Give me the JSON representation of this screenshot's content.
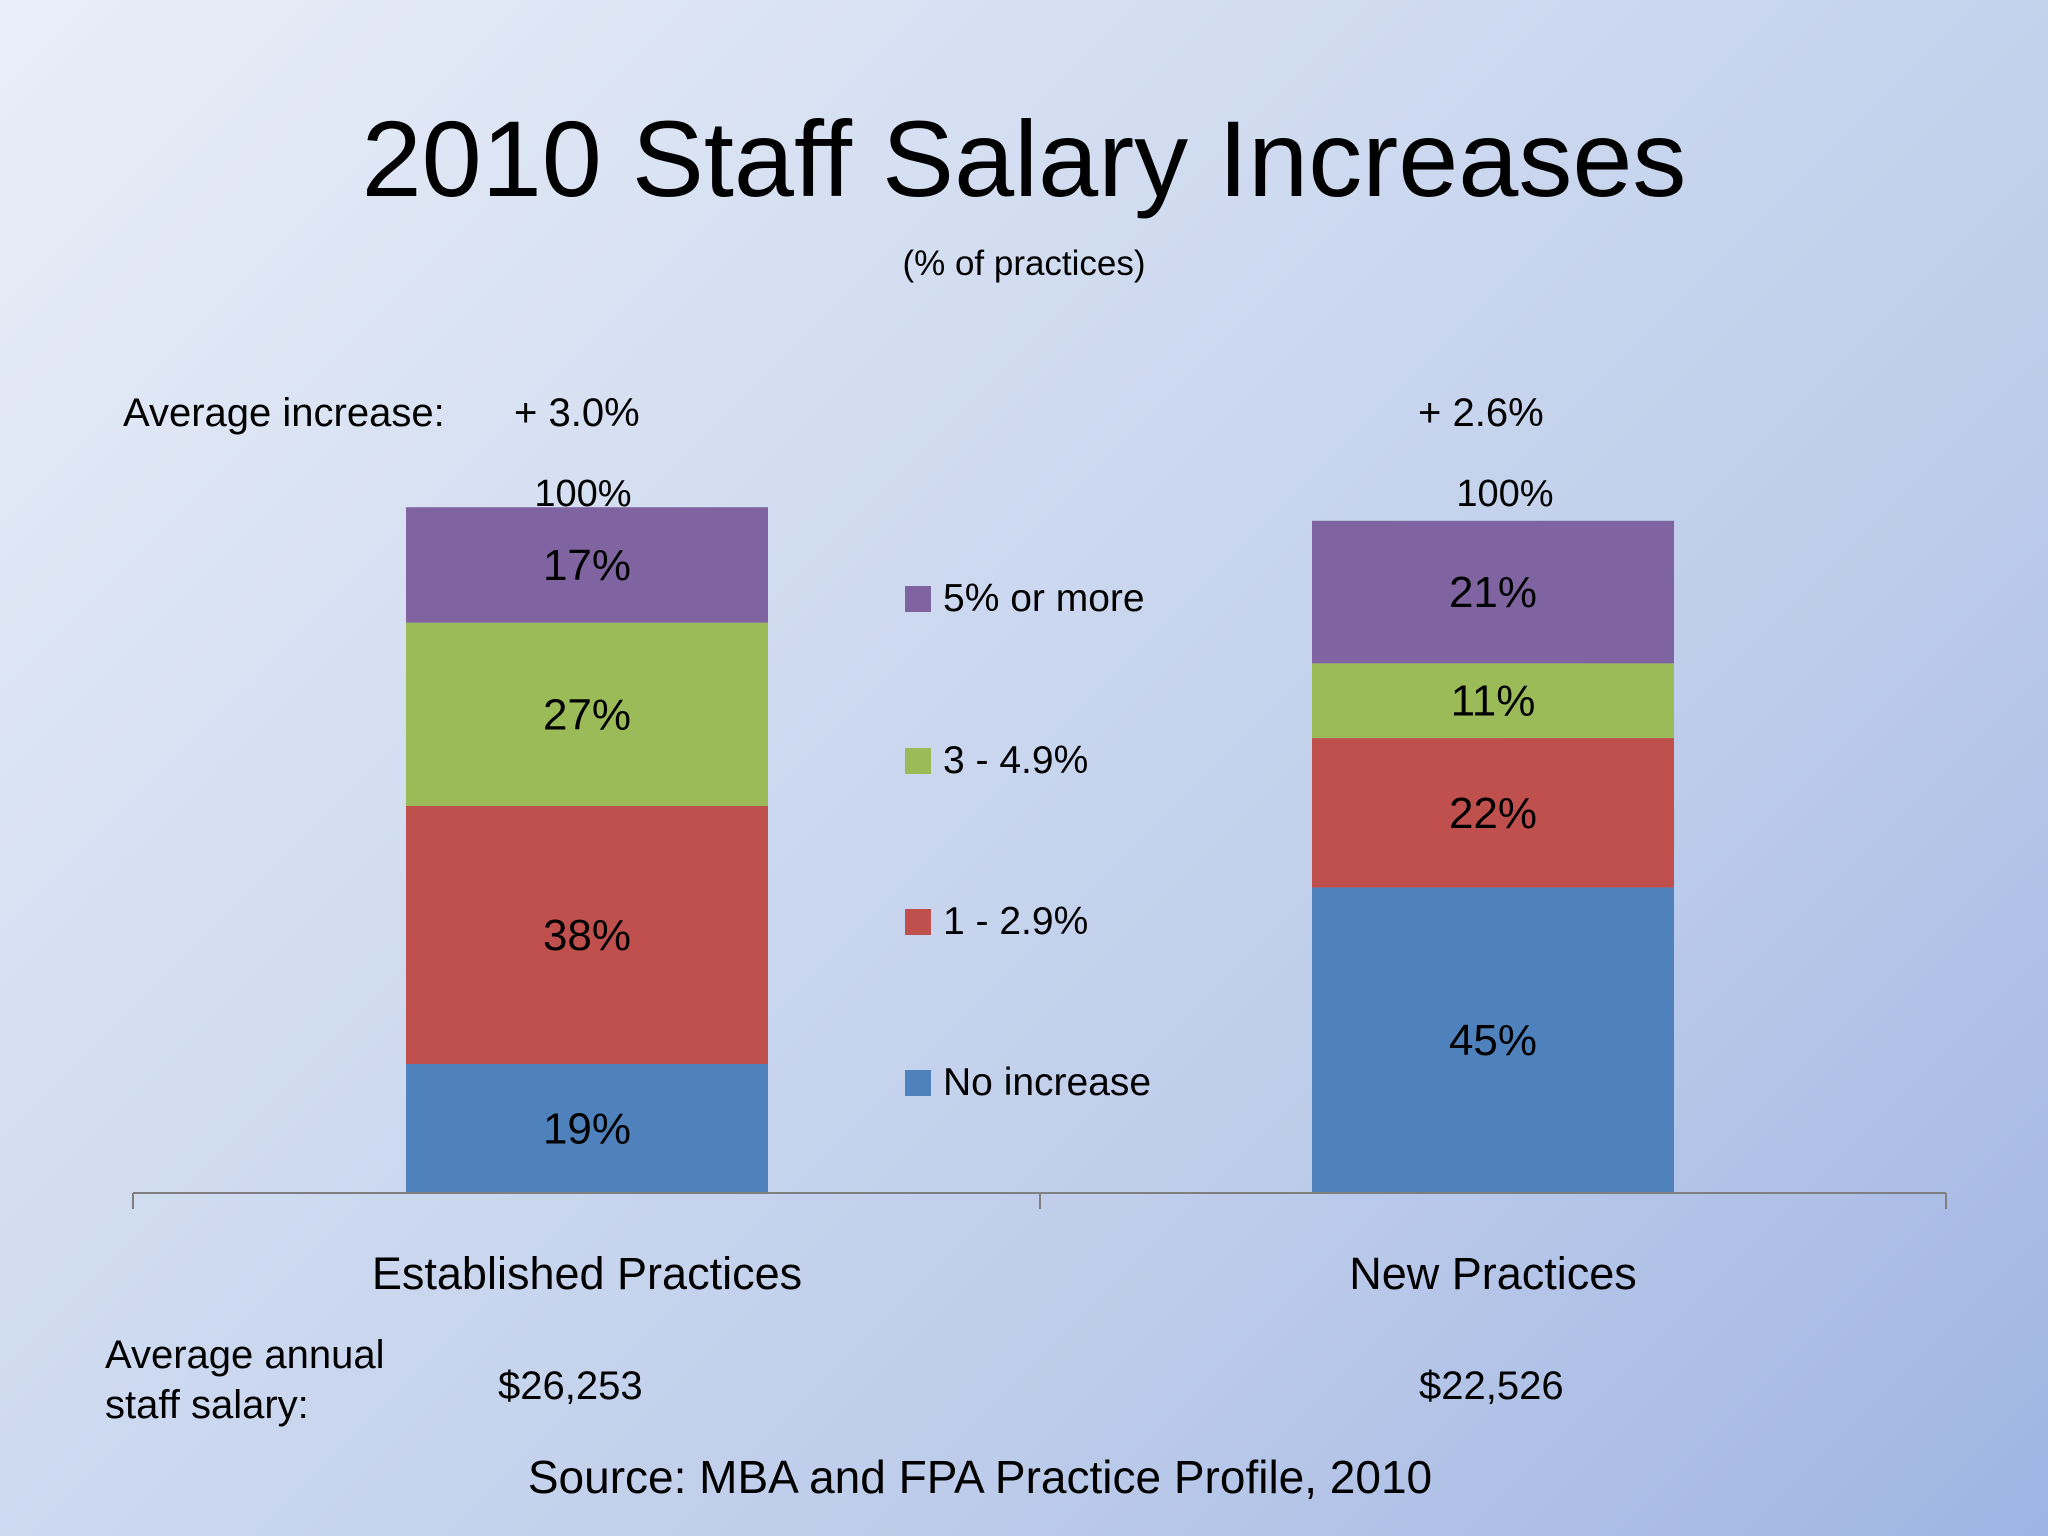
{
  "header": {
    "title": "2010 Staff Salary Increases",
    "subtitle": "(% of practices)"
  },
  "average_increase": {
    "label": "Average increase:",
    "established": "+ 3.0%",
    "new": "+ 2.6%"
  },
  "totals": {
    "established": "100%",
    "new": "100%"
  },
  "salary": {
    "label": "Average annual staff salary:",
    "established": "$26,253",
    "new": "$22,526"
  },
  "source": "Source: MBA and FPA Practice Profile, 2010",
  "chart_data": {
    "type": "bar",
    "stacked": true,
    "categories": [
      "Established Practices",
      "New Practices"
    ],
    "series": [
      {
        "name": "No increase",
        "values": [
          19,
          45
        ],
        "labels": [
          "19%",
          "45%"
        ],
        "color": "#4f81bd"
      },
      {
        "name": "1 - 2.9%",
        "values": [
          38,
          22
        ],
        "labels": [
          "38%",
          "22%"
        ],
        "color": "#c0504d"
      },
      {
        "name": "3 - 4.9%",
        "values": [
          27,
          11
        ],
        "labels": [
          "27%",
          "11%"
        ],
        "color": "#9bbb59"
      },
      {
        "name": "5% or more",
        "values": [
          17,
          21
        ],
        "labels": [
          "17%",
          "21%"
        ],
        "color": "#8064a2"
      }
    ],
    "legend_order": [
      "5% or more",
      "3 - 4.9%",
      "1 - 2.9%",
      "No increase"
    ],
    "legend_position": "center",
    "unit": "%",
    "axis_color": "#7f7f7f"
  }
}
